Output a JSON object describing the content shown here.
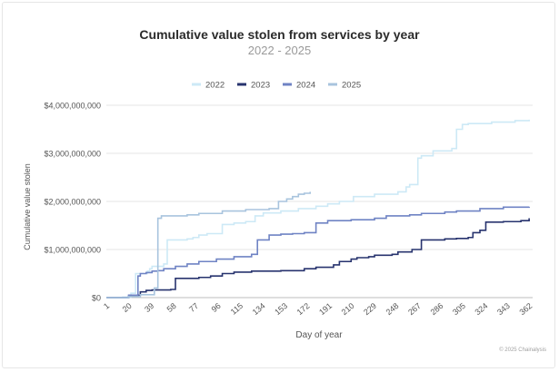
{
  "chart_data": {
    "type": "line",
    "title": "Cumulative value stolen from services by year",
    "subtitle": "2022 - 2025",
    "xlabel": "Day of year",
    "ylabel": "Cumulative value stolen",
    "xlim": [
      1,
      365
    ],
    "ylim": [
      0,
      4000000000
    ],
    "x_ticks": [
      "1",
      "20",
      "39",
      "58",
      "77",
      "96",
      "115",
      "134",
      "153",
      "172",
      "191",
      "210",
      "229",
      "248",
      "267",
      "286",
      "305",
      "324",
      "343",
      "362"
    ],
    "y_ticks": [
      {
        "value": 0,
        "label": "$0"
      },
      {
        "value": 1000000000,
        "label": "$1,000,000,000"
      },
      {
        "value": 2000000000,
        "label": "$2,000,000,000"
      },
      {
        "value": 3000000000,
        "label": "$3,000,000,000"
      },
      {
        "value": 4000000000,
        "label": "$4,000,000,000"
      }
    ],
    "grid": true,
    "legend_position": "top",
    "series": [
      {
        "name": "2022",
        "color": "#cde9f6",
        "x": [
          1,
          15,
          22,
          26,
          36,
          38,
          40,
          50,
          53,
          62,
          70,
          75,
          80,
          87,
          100,
          110,
          120,
          128,
          135,
          150,
          165,
          180,
          190,
          200,
          212,
          230,
          250,
          257,
          260,
          267,
          270,
          280,
          296,
          300,
          305,
          310,
          330,
          350,
          362
        ],
        "y": [
          0,
          10000000,
          90000000,
          500000000,
          550000000,
          600000000,
          650000000,
          700000000,
          1200000000,
          1200000000,
          1220000000,
          1250000000,
          1300000000,
          1330000000,
          1520000000,
          1550000000,
          1580000000,
          1700000000,
          1760000000,
          1800000000,
          1850000000,
          1900000000,
          1950000000,
          2000000000,
          2100000000,
          2150000000,
          2200000000,
          2300000000,
          2350000000,
          2900000000,
          2950000000,
          3050000000,
          3100000000,
          3500000000,
          3600000000,
          3620000000,
          3650000000,
          3680000000,
          3700000000
        ]
      },
      {
        "name": "2023",
        "color": "#27336e",
        "x": [
          1,
          20,
          28,
          30,
          35,
          40,
          50,
          56,
          60,
          80,
          90,
          100,
          110,
          125,
          150,
          170,
          180,
          195,
          200,
          210,
          215,
          225,
          230,
          245,
          250,
          262,
          270,
          290,
          300,
          310,
          314,
          320,
          325,
          340,
          355,
          362
        ],
        "y": [
          0,
          30000000,
          50000000,
          120000000,
          150000000,
          160000000,
          160000000,
          170000000,
          400000000,
          420000000,
          450000000,
          500000000,
          530000000,
          550000000,
          560000000,
          600000000,
          630000000,
          680000000,
          750000000,
          800000000,
          830000000,
          850000000,
          880000000,
          900000000,
          950000000,
          1000000000,
          1200000000,
          1220000000,
          1230000000,
          1250000000,
          1350000000,
          1400000000,
          1570000000,
          1580000000,
          1600000000,
          1650000000
        ]
      },
      {
        "name": "2024",
        "color": "#6f83c4",
        "x": [
          1,
          20,
          28,
          30,
          35,
          40,
          45,
          50,
          60,
          70,
          80,
          95,
          110,
          125,
          130,
          140,
          150,
          160,
          170,
          180,
          190,
          210,
          230,
          240,
          260,
          270,
          290,
          300,
          320,
          340,
          362
        ],
        "y": [
          0,
          50000000,
          450000000,
          500000000,
          520000000,
          550000000,
          560000000,
          600000000,
          650000000,
          700000000,
          750000000,
          800000000,
          850000000,
          900000000,
          1200000000,
          1300000000,
          1320000000,
          1330000000,
          1350000000,
          1550000000,
          1600000000,
          1620000000,
          1650000000,
          1700000000,
          1720000000,
          1750000000,
          1780000000,
          1800000000,
          1850000000,
          1880000000,
          1890000000
        ]
      },
      {
        "name": "2025",
        "color": "#a8c4de",
        "x": [
          1,
          20,
          30,
          42,
          45,
          48,
          60,
          70,
          80,
          100,
          120,
          140,
          148,
          155,
          160,
          165,
          170,
          175
        ],
        "y": [
          0,
          20000000,
          60000000,
          200000000,
          1650000000,
          1700000000,
          1700000000,
          1720000000,
          1750000000,
          1800000000,
          1830000000,
          1850000000,
          2000000000,
          2050000000,
          2100000000,
          2150000000,
          2170000000,
          2200000000
        ]
      }
    ]
  },
  "credit": "© 2025 Chainalysis"
}
